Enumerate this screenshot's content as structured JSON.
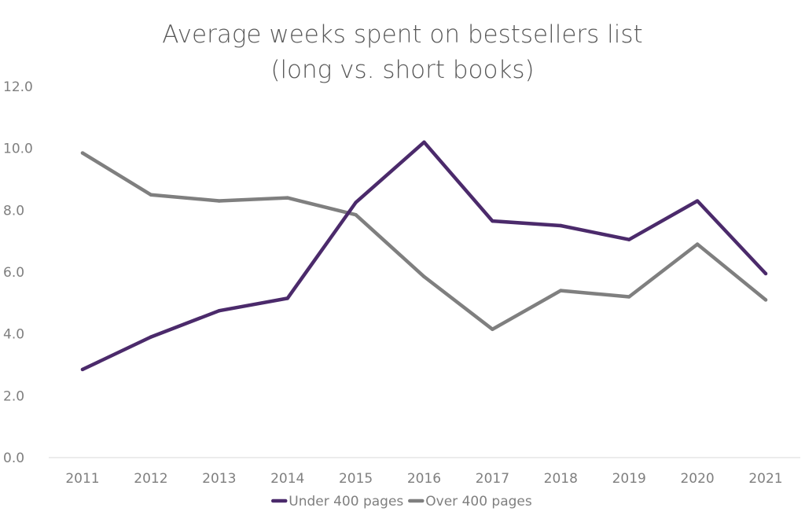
{
  "chart_data": {
    "type": "line",
    "title_lines": [
      "Average weeks spent on bestsellers list",
      "(long vs. short books)"
    ],
    "xlabel": "",
    "ylabel": "",
    "categories": [
      "2011",
      "2012",
      "2013",
      "2014",
      "2015",
      "2016",
      "2017",
      "2018",
      "2019",
      "2020",
      "2021"
    ],
    "ylim": [
      0,
      12
    ],
    "yticks": [
      "0.0",
      "2.0",
      "4.0",
      "6.0",
      "8.0",
      "10.0",
      "12.0"
    ],
    "grid": "none",
    "legend_position": "bottom",
    "series": [
      {
        "name": "Under 400 pages",
        "color": "#4b2a6b",
        "values": [
          2.85,
          3.9,
          4.75,
          5.15,
          8.25,
          10.2,
          7.65,
          7.5,
          7.05,
          8.3,
          5.95
        ]
      },
      {
        "name": "Over 400 pages",
        "color": "#7f7f7f",
        "values": [
          9.85,
          8.5,
          8.3,
          8.4,
          7.85,
          5.85,
          4.15,
          5.4,
          5.2,
          6.9,
          5.1
        ]
      }
    ]
  }
}
